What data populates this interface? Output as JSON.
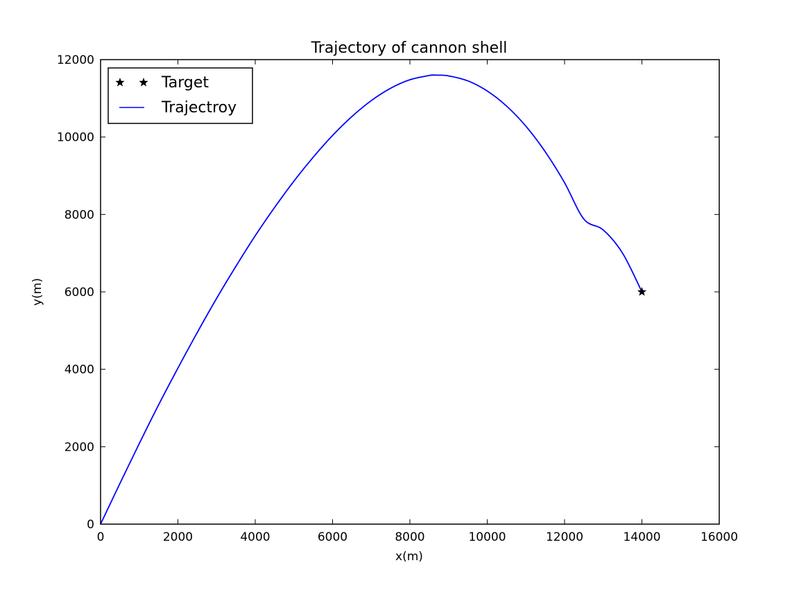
{
  "chart_data": {
    "type": "line",
    "title": "Trajectory of cannon shell",
    "xlabel": "x(m)",
    "ylabel": "y(m)",
    "xlim": [
      0,
      16000
    ],
    "ylim": [
      0,
      12000
    ],
    "xticks": [
      0,
      2000,
      4000,
      6000,
      8000,
      10000,
      12000,
      14000,
      16000
    ],
    "yticks": [
      0,
      2000,
      4000,
      6000,
      8000,
      10000,
      12000
    ],
    "xtick_labels": [
      "0",
      "2000",
      "4000",
      "6000",
      "8000",
      "10000",
      "12000",
      "14000",
      "16000"
    ],
    "ytick_labels": [
      "0",
      "2000",
      "4000",
      "6000",
      "8000",
      "10000",
      "12000"
    ],
    "grid": false,
    "legend_position": "top-left",
    "series": [
      {
        "name": "Target",
        "type": "scatter",
        "marker": "star",
        "color": "#000000",
        "points": [
          [
            14000,
            6000
          ]
        ]
      },
      {
        "name": "Trajectroy",
        "type": "line",
        "color": "#0000ff",
        "points": [
          [
            0,
            0
          ],
          [
            500,
            1050
          ],
          [
            1000,
            2080
          ],
          [
            1500,
            3080
          ],
          [
            2000,
            4030
          ],
          [
            2500,
            4950
          ],
          [
            3000,
            5830
          ],
          [
            3500,
            6660
          ],
          [
            4000,
            7450
          ],
          [
            4500,
            8180
          ],
          [
            5000,
            8860
          ],
          [
            5500,
            9480
          ],
          [
            6000,
            10040
          ],
          [
            6500,
            10530
          ],
          [
            7000,
            10940
          ],
          [
            7500,
            11260
          ],
          [
            8000,
            11480
          ],
          [
            8500,
            11590
          ],
          [
            8650,
            11600
          ],
          [
            9000,
            11580
          ],
          [
            9500,
            11450
          ],
          [
            10000,
            11190
          ],
          [
            10500,
            10800
          ],
          [
            11000,
            10280
          ],
          [
            11500,
            9620
          ],
          [
            12000,
            8820
          ],
          [
            12500,
            7880
          ],
          [
            13000,
            7600
          ],
          [
            13500,
            7000
          ],
          [
            14000,
            6000
          ]
        ]
      }
    ]
  }
}
